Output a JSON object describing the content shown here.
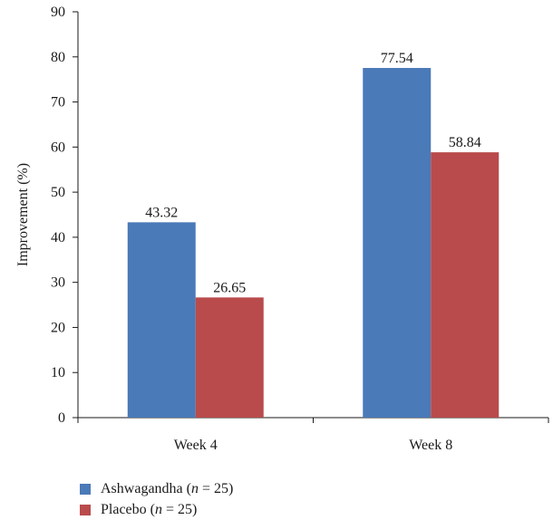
{
  "chart_data": {
    "type": "bar",
    "categories": [
      "Week 4",
      "Week 8"
    ],
    "series": [
      {
        "name": "Ashwagandha (n = 25)",
        "name_parts": [
          "Ashwagandha (",
          "n",
          " = 25)"
        ],
        "color": "#4a7ab8",
        "values": [
          43.32,
          77.54
        ],
        "labels": [
          "43.32",
          "77.54"
        ]
      },
      {
        "name": "Placebo (n = 25)",
        "name_parts": [
          "Placebo (",
          "n",
          " = 25)"
        ],
        "color": "#b94b4c",
        "values": [
          26.65,
          58.84
        ],
        "labels": [
          "26.65",
          "58.84"
        ]
      }
    ],
    "title": "",
    "xlabel": "",
    "ylabel": "Improvement (%)",
    "ylim": [
      0,
      90
    ],
    "yticks": [
      "0",
      "10",
      "20",
      "30",
      "40",
      "50",
      "60",
      "70",
      "80",
      "90"
    ],
    "grid": false,
    "legend_position": "bottom-left"
  }
}
